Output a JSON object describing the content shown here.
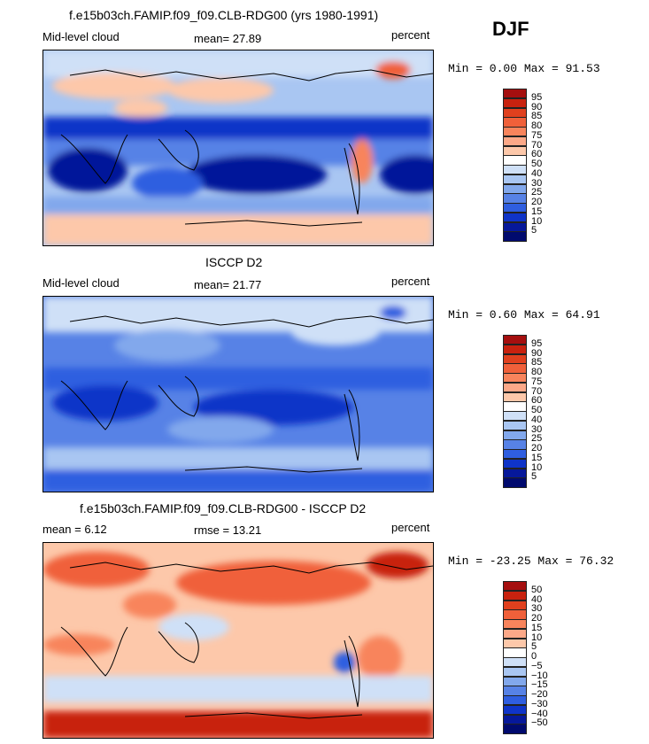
{
  "season": "DJF",
  "panels": [
    {
      "title": "f.e15b03ch.FAMIP.f09_f09.CLB-RDG00 (yrs 1980-1991)",
      "left_label": "Mid-level cloud",
      "center_label": "mean=  27.89",
      "right_label": "percent",
      "minmax": "Min =   0.00 Max =  91.53",
      "colorbar_labels": [
        "95",
        "90",
        "85",
        "80",
        "75",
        "70",
        "60",
        "50",
        "40",
        "30",
        "25",
        "20",
        "15",
        "10",
        "5"
      ],
      "colorbar_colors": [
        "#a50f0f",
        "#c8220f",
        "#e0401e",
        "#f0603a",
        "#f8845c",
        "#fca888",
        "#fdc8aa",
        "#ffffff",
        "#cfe0f7",
        "#a9c6f2",
        "#82a8ec",
        "#5782e6",
        "#2f5ee0",
        "#0f34c8",
        "#06189a",
        "#000a6e"
      ]
    },
    {
      "title": "ISCCP D2",
      "left_label": "Mid-level cloud",
      "center_label": "mean=  21.77",
      "right_label": "percent",
      "minmax": "Min =   0.60 Max =  64.91",
      "colorbar_labels": [
        "95",
        "90",
        "85",
        "80",
        "75",
        "70",
        "60",
        "50",
        "40",
        "30",
        "25",
        "20",
        "15",
        "10",
        "5"
      ],
      "colorbar_colors": [
        "#a50f0f",
        "#c8220f",
        "#e0401e",
        "#f0603a",
        "#f8845c",
        "#fca888",
        "#fdc8aa",
        "#ffffff",
        "#cfe0f7",
        "#a9c6f2",
        "#82a8ec",
        "#5782e6",
        "#2f5ee0",
        "#0f34c8",
        "#06189a",
        "#000a6e"
      ]
    },
    {
      "title": "f.e15b03ch.FAMIP.f09_f09.CLB-RDG00 - ISCCP D2",
      "left_label": "mean =    6.12",
      "center_label": "rmse =   13.21",
      "right_label": "percent",
      "minmax": "Min = -23.25 Max =  76.32",
      "colorbar_labels": [
        "50",
        "40",
        "30",
        "20",
        "15",
        "10",
        "5",
        "0",
        "−5",
        "−10",
        "−15",
        "−20",
        "−30",
        "−40",
        "−50"
      ],
      "colorbar_colors": [
        "#a50f0f",
        "#c8220f",
        "#e0401e",
        "#f0603a",
        "#f8845c",
        "#fca888",
        "#fdc8aa",
        "#ffffff",
        "#cfe0f7",
        "#a9c6f2",
        "#82a8ec",
        "#5782e6",
        "#2f5ee0",
        "#0f34c8",
        "#06189a",
        "#000a6e"
      ]
    }
  ]
}
